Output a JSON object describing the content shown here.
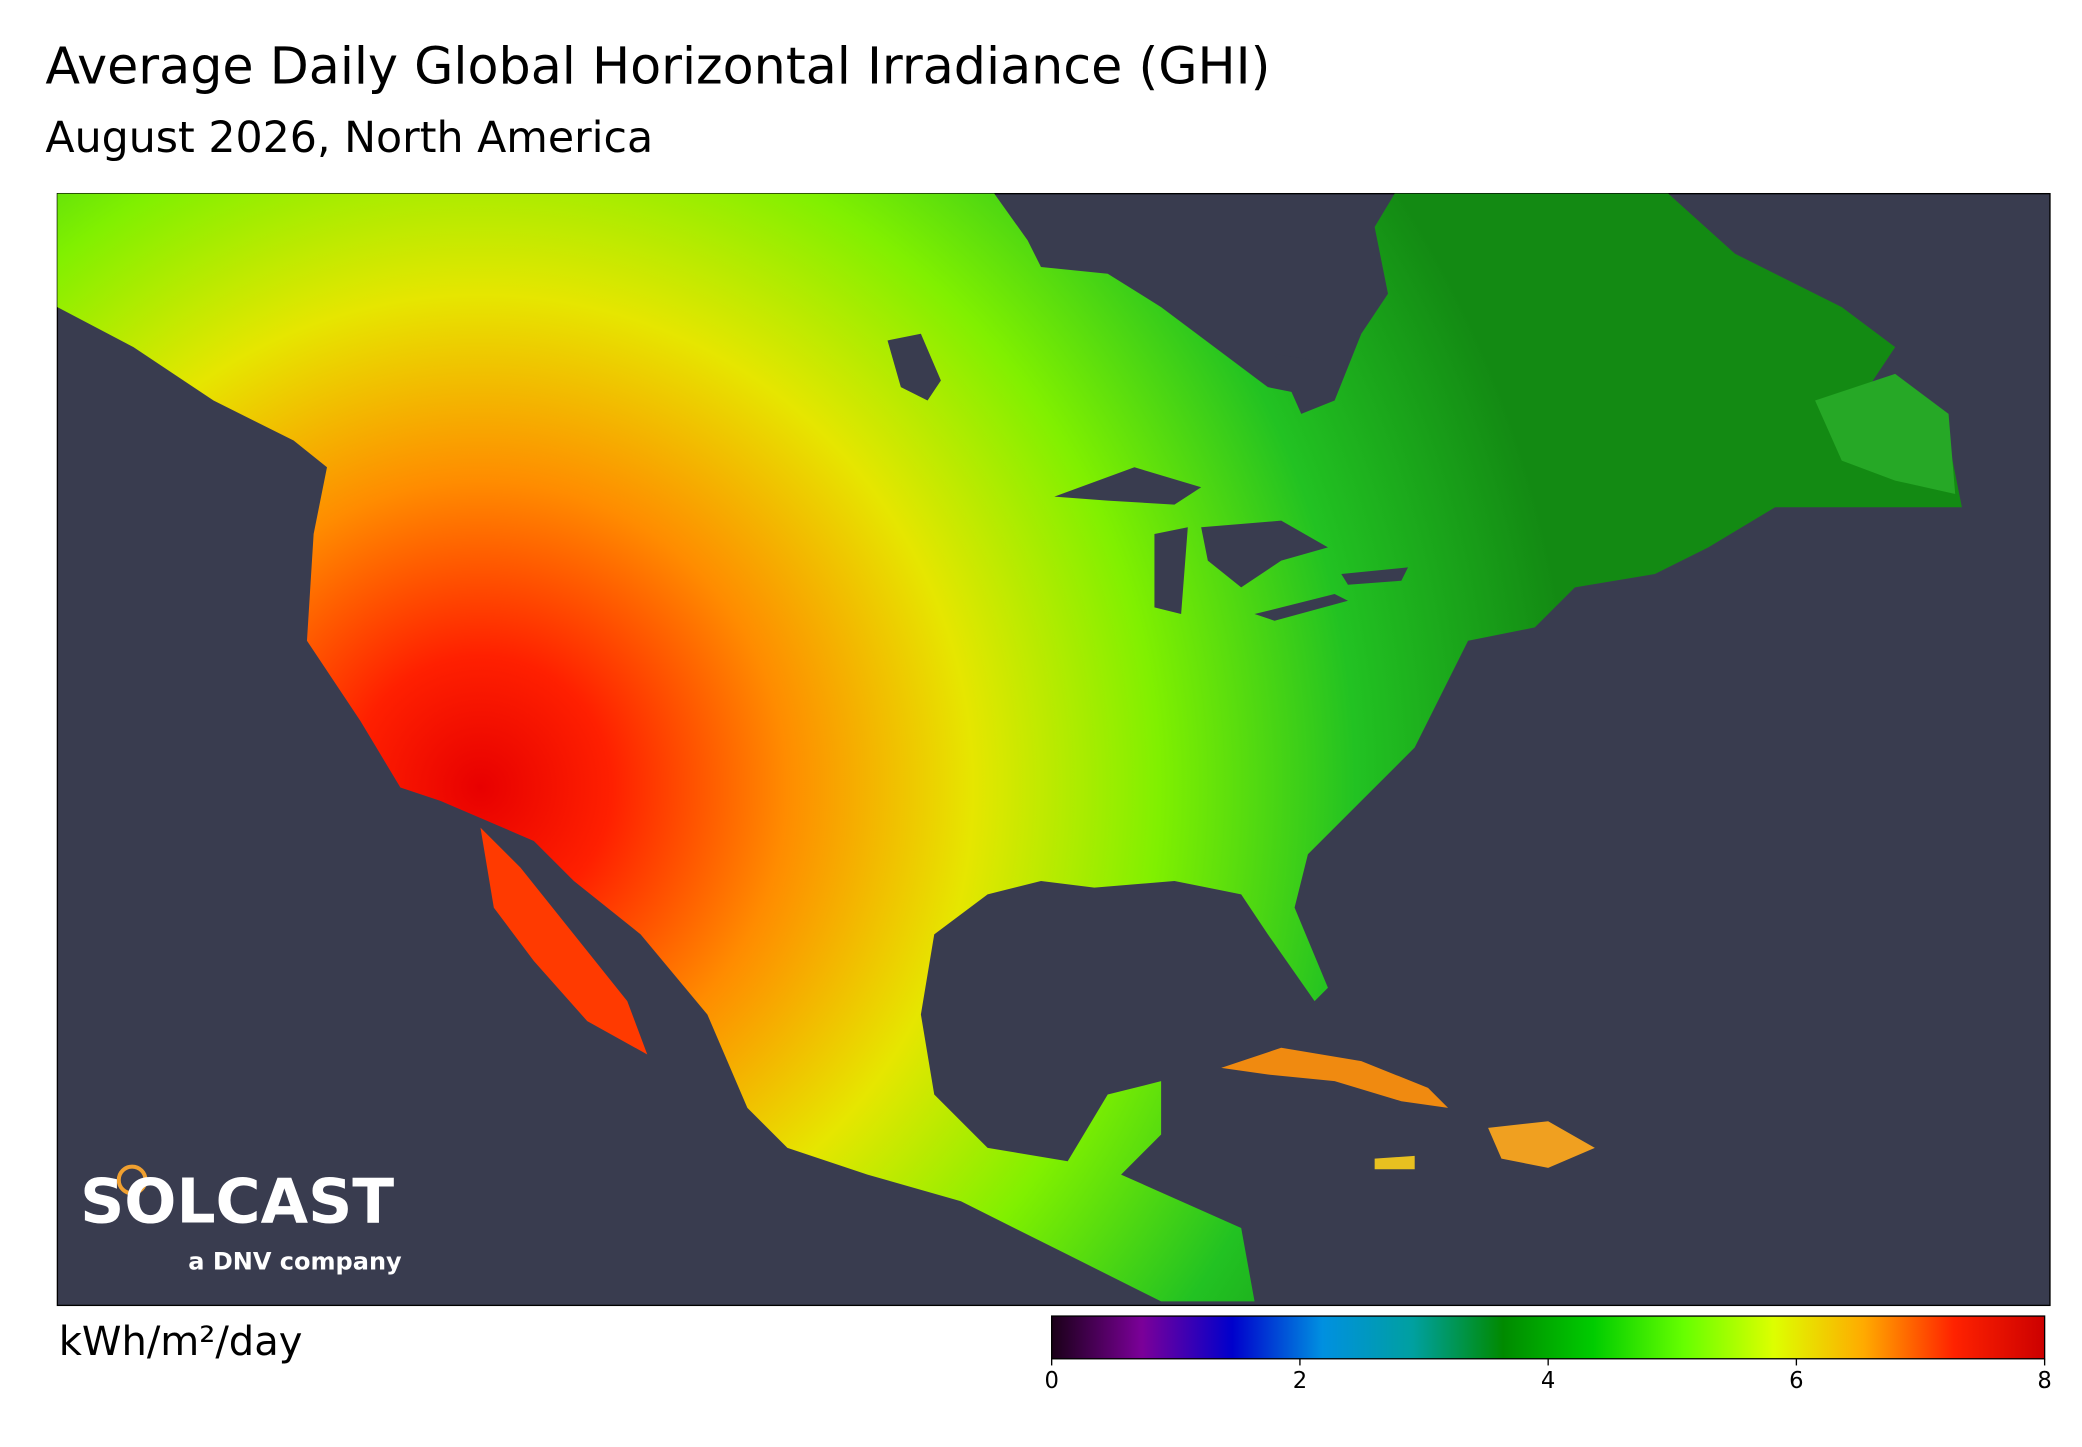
{
  "header": {
    "title": "Average Daily Global Horizontal Irradiance (GHI)",
    "subtitle": "August 2026, North America"
  },
  "logo": {
    "name": "SOLCAST",
    "tagline": "a DNV company"
  },
  "colorbar": {
    "label": "kWh/m²/day",
    "lim": [
      0,
      8
    ],
    "ticks": [
      0,
      2,
      4,
      6,
      8
    ],
    "colors": [
      "#1a0018",
      "#7b0099",
      "#0000cc",
      "#0090e0",
      "#00a0a0",
      "#008a00",
      "#00cc00",
      "#66ff00",
      "#ddff00",
      "#ffaa00",
      "#ff2200",
      "#cc0000"
    ]
  }
}
